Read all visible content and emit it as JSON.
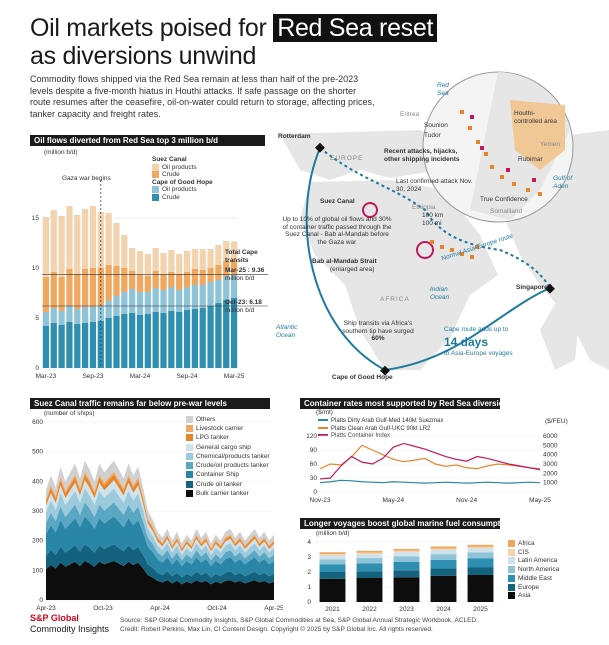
{
  "header": {
    "title_pre": "Oil markets poised for",
    "title_hl": "Red Sea reset",
    "title_line2": "as diversions unwind",
    "intro": "Commodity flows shipped via the Red Sea remain at less than half of the pre-2023 levels despite a five-month hiatus in Houthi attacks. If safe passage on the shorter route resumes after the ceasefire, oil-on-water could return to storage, affecting prices, tanker capacity and freight rates."
  },
  "oil_panel": {
    "title": "Oil flows diverted from Red Sea top 3 million b/d",
    "unit": "(million b/d)",
    "annotation_gaza": "Gaza war begins",
    "legend_suez_title": "Suez Canal",
    "legend_suez": [
      "Oil products",
      "Crude"
    ],
    "legend_cape_title": "Cape of Good Hope",
    "legend_cape": [
      "Oil products",
      "Crude"
    ],
    "total_cape_label": "Total Cape transits",
    "mar25_label": "Mar-25 : 9.36",
    "mar25_unit": "million b/d",
    "oct23_label": "Oct-23: 6.18",
    "oct23_unit": "million b/d",
    "colors": {
      "suez_products": "#f2d3ae",
      "suez_crude": "#f0a860",
      "cape_products": "#8ec3d8",
      "cape_crude": "#2f8fb0"
    }
  },
  "map_panel": {
    "rotterdam": "Rotterdam",
    "europe": "EUROPE",
    "africa": "AFRICA",
    "suez_canal": "Suez Canal",
    "suez_note": "Up to 10% of global oil flows and 30% of container traffic passed through the Suez Canal - Bab al-Mandab before the Gaza war",
    "bab_label": "Bab al-Mandab Strait",
    "bab_sub": "(enlarged area)",
    "atlantic": "Atlantic Ocean",
    "indian": "Indian Ocean",
    "ship_note": "Ship transits via Africa's southern tip have surged",
    "ship_pct": "60%",
    "cape_label": "Cape of Good Hope",
    "singapore": "Singapore",
    "route_label": "Normal Asia-Europe route",
    "cape_adds": "Cape route adds up to",
    "cape_days": "14 days",
    "cape_days_sub": "to Asia-Europe voyages",
    "inset": {
      "red_sea": "Red Sea",
      "houthi": "Houthi-controlled area",
      "sounion": "Sounion",
      "tudor": "Tudor",
      "eritrea": "Eritrea",
      "yemen": "Yemen",
      "gulf_aden": "Gulf of Aden",
      "attacks": "Recent attacks, hijacks, other shipping incidents",
      "rubimar": "Rubimar",
      "last_attack": "Last confirmed attack Nov. 30, 2024",
      "true_conf": "True Confidence",
      "ethiopia": "Ethiopia",
      "somaliland": "Somaliland",
      "scale1": "100 km",
      "scale2": "100 mi"
    }
  },
  "suez_panel": {
    "title": "Suez Canal traffic remains far below pre-war levels",
    "unit": "(number of ships)",
    "legend": [
      "Others",
      "Livestock carrier",
      "LPG tanker",
      "General cargo ship",
      "Chemical/products tanker",
      "Crude/oil products tanker",
      "Container Ship",
      "Crude oil tanker",
      "Bulk carrier tanker"
    ],
    "colors": [
      "#d0d0d0",
      "#f0a860",
      "#e8852b",
      "#cfe3ec",
      "#9cc9dc",
      "#5aa7c3",
      "#2a86a6",
      "#14627e",
      "#0d0d0d"
    ]
  },
  "container_panel": {
    "title": "Container rates most supported by Red Sea diversions",
    "unit_left": "($/mt)",
    "unit_right": "($/FEU)",
    "legend": [
      "Platts Dirty Arab Gulf-Med 140kt Suezmax",
      "Platts Clean Arab Gulf-UKC 90kt LR2",
      "Platts Container Index"
    ],
    "colors": [
      "#2a86a6",
      "#e8852b",
      "#c2185b"
    ]
  },
  "fuel_panel": {
    "title": "Longer voyages boost global marine fuel consumption",
    "unit": "(million b/d)",
    "legend": [
      "Africa",
      "CIS",
      "Latin America",
      "North America",
      "Middle East",
      "Europe",
      "Asia"
    ],
    "colors": [
      "#f0a860",
      "#f2d3ae",
      "#cfe3ec",
      "#8ec3d8",
      "#2f8fb0",
      "#14627e",
      "#0d0d0d"
    ]
  },
  "footer": {
    "logo1": "S&P Global",
    "logo2": "Commodity Insights",
    "source": "Source: S&P Global Commodity Insights, S&P Global Commodities at Sea, S&P Global Annual Strategic Workbook, ACLED.",
    "credit": "Credit: Robert Perkins, Max Lin, CI Content Design. Copyright © 2025 by S&P Global Inc. All rights reserved."
  },
  "chart_data": [
    {
      "type": "bar",
      "title": "Oil flows diverted from Red Sea top 3 million b/d",
      "ylabel": "(million b/d)",
      "ylim": [
        0,
        20
      ],
      "yticks": [
        0,
        5,
        10,
        15
      ],
      "xticks": [
        "Mar-23",
        "Sep-23",
        "Mar-24",
        "Sep-24",
        "Mar-25"
      ],
      "stacked": true,
      "x": [
        "Mar-23",
        "Apr-23",
        "May-23",
        "Jun-23",
        "Jul-23",
        "Aug-23",
        "Sep-23",
        "Oct-23",
        "Nov-23",
        "Dec-23",
        "Jan-24",
        "Feb-24",
        "Mar-24",
        "Apr-24",
        "May-24",
        "Jun-24",
        "Jul-24",
        "Aug-24",
        "Sep-24",
        "Oct-24",
        "Nov-24",
        "Dec-24",
        "Jan-25",
        "Feb-25",
        "Mar-25"
      ],
      "series": [
        {
          "name": "Cape of Good Hope Crude",
          "values": [
            4.2,
            4.5,
            4.3,
            4.6,
            4.4,
            4.5,
            4.6,
            4.7,
            5.0,
            5.2,
            5.4,
            5.5,
            5.3,
            5.4,
            5.6,
            5.5,
            5.7,
            5.6,
            5.8,
            5.9,
            6.0,
            6.2,
            6.5,
            6.8,
            7.0
          ]
        },
        {
          "name": "Cape of Good Hope Oil products",
          "values": [
            1.4,
            1.5,
            1.4,
            1.6,
            1.5,
            1.6,
            1.5,
            1.5,
            1.7,
            2.0,
            2.2,
            2.4,
            2.3,
            2.2,
            2.4,
            2.3,
            2.4,
            2.2,
            2.3,
            2.4,
            2.3,
            2.4,
            2.3,
            2.4,
            2.36
          ]
        },
        {
          "name": "Suez Canal Crude",
          "values": [
            3.5,
            3.6,
            3.4,
            3.7,
            3.5,
            3.8,
            3.9,
            3.8,
            3.6,
            3.0,
            2.4,
            1.8,
            1.7,
            1.6,
            1.7,
            1.6,
            1.5,
            1.6,
            1.5,
            1.6,
            1.5,
            1.4,
            1.5,
            1.5,
            1.4
          ]
        },
        {
          "name": "Suez Canal Oil products",
          "values": [
            6.0,
            6.2,
            6.1,
            6.3,
            5.9,
            6.0,
            6.2,
            5.6,
            5.2,
            4.3,
            3.3,
            2.3,
            2.4,
            2.2,
            2.3,
            2.1,
            2.2,
            2.0,
            2.1,
            2.0,
            2.1,
            1.9,
            2.0,
            2.0,
            1.9
          ]
        }
      ],
      "annotations": [
        "Gaza war begins",
        "Mar-25 : 9.36 million b/d",
        "Oct-23: 6.18 million b/d"
      ]
    },
    {
      "type": "area",
      "title": "Suez Canal traffic remains far below pre-war levels",
      "ylabel": "(number of ships)",
      "ylim": [
        0,
        600
      ],
      "yticks": [
        0,
        100,
        200,
        300,
        400,
        500,
        600
      ],
      "xticks": [
        "Apr-23",
        "Oct-23",
        "Apr-24",
        "Oct-24",
        "Apr-25"
      ],
      "stacked": true,
      "total_profile": [
        370,
        420,
        380,
        450,
        400,
        430,
        460,
        410,
        470,
        440,
        400,
        460,
        430,
        450,
        470,
        440,
        410,
        460,
        420,
        450,
        380,
        300,
        270,
        230,
        210,
        240,
        200,
        230,
        190,
        220,
        200,
        240,
        210,
        230,
        190,
        220,
        200,
        230,
        240,
        210,
        230,
        200,
        220,
        240,
        210,
        230,
        200,
        220
      ],
      "shares": {
        "Bulk carrier tanker": 0.28,
        "Crude oil tanker": 0.12,
        "Container Ship": 0.2,
        "Crude/oil products tanker": 0.1,
        "Chemical/products tanker": 0.1,
        "General cargo ship": 0.06,
        "LPG tanker": 0.04,
        "Livestock carrier": 0.02,
        "Others": 0.08
      }
    },
    {
      "type": "line",
      "title": "Container rates most supported by Red Sea diversions",
      "ylabel_left": "($/mt)",
      "ylabel_right": "($/FEU)",
      "ylim_left": [
        0,
        120
      ],
      "yticks_left": [
        0,
        30,
        60,
        90,
        120
      ],
      "ylim_right": [
        0,
        6000
      ],
      "yticks_right": [
        1000,
        2000,
        3000,
        4000,
        5000,
        6000
      ],
      "xticks": [
        "Nov-23",
        "May-24",
        "Nov-24",
        "May-25"
      ],
      "series": [
        {
          "name": "Platts Dirty Arab Gulf-Med 140kt Suezmax",
          "axis": "left",
          "values": [
            20,
            22,
            25,
            24,
            22,
            21,
            20,
            22,
            21,
            20,
            19,
            20,
            21,
            20,
            19,
            20,
            21,
            20,
            19,
            20,
            21,
            20
          ]
        },
        {
          "name": "Platts Clean Arab Gulf-UKC 90kt LR2",
          "axis": "left",
          "values": [
            50,
            60,
            58,
            75,
            100,
            90,
            80,
            70,
            65,
            68,
            72,
            60,
            55,
            58,
            52,
            50,
            56,
            60,
            58,
            55,
            52,
            50
          ]
        },
        {
          "name": "Platts Container Index",
          "axis": "right",
          "values": [
            1400,
            1500,
            2800,
            3800,
            3200,
            3000,
            3600,
            4800,
            5200,
            4900,
            4600,
            4200,
            3800,
            3500,
            3300,
            3800,
            3600,
            3300,
            3000,
            2800,
            2600,
            2400
          ]
        }
      ]
    },
    {
      "type": "bar",
      "title": "Longer voyages boost global marine fuel consumption",
      "ylabel": "(million b/d)",
      "ylim": [
        0,
        4
      ],
      "yticks": [
        0,
        1,
        2,
        3,
        4
      ],
      "categories": [
        "2021",
        "2022",
        "2023",
        "2024",
        "2025"
      ],
      "stacked": true,
      "series": [
        {
          "name": "Asia",
          "values": [
            1.55,
            1.6,
            1.65,
            1.75,
            1.8
          ]
        },
        {
          "name": "Europe",
          "values": [
            0.45,
            0.45,
            0.47,
            0.48,
            0.5
          ]
        },
        {
          "name": "Middle East",
          "values": [
            0.5,
            0.52,
            0.55,
            0.58,
            0.6
          ]
        },
        {
          "name": "North America",
          "values": [
            0.35,
            0.36,
            0.38,
            0.38,
            0.4
          ]
        },
        {
          "name": "Latin America",
          "values": [
            0.25,
            0.26,
            0.27,
            0.28,
            0.28
          ]
        },
        {
          "name": "CIS",
          "values": [
            0.1,
            0.1,
            0.1,
            0.1,
            0.1
          ]
        },
        {
          "name": "Africa",
          "values": [
            0.12,
            0.12,
            0.12,
            0.13,
            0.13
          ]
        }
      ]
    }
  ]
}
